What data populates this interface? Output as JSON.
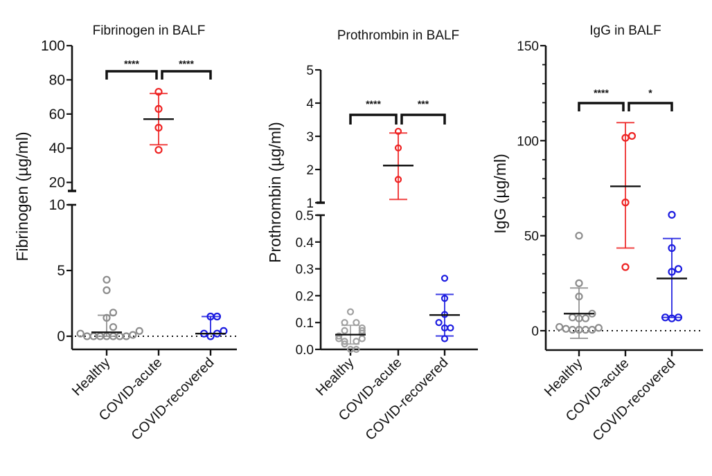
{
  "chart_data": [
    {
      "type": "scatter",
      "title": "Fibrinogen in BALF",
      "ylabel": "Fibrinogen (µg/ml)",
      "xlabel": "",
      "categories": [
        "Healthy",
        "COVID-acute",
        "COVID-recovered"
      ],
      "y_axis_broken": true,
      "y_segments": [
        {
          "range": [
            0,
            10
          ],
          "ticks": [
            0,
            5,
            10
          ],
          "tick_labels": [
            "0",
            "5",
            "10"
          ]
        },
        {
          "range": [
            15,
            100
          ],
          "ticks": [
            20,
            40,
            60,
            80,
            100
          ],
          "tick_labels": [
            "20",
            "40",
            "60",
            "80",
            "100"
          ]
        }
      ],
      "reference_line": {
        "y": 0,
        "style": "dotted"
      },
      "series": [
        {
          "name": "Healthy",
          "color": "#8c8c8c",
          "values": [
            0.0,
            0.0,
            0.0,
            0.0,
            0.0,
            0.0,
            0.0,
            0.1,
            0.2,
            0.4,
            0.7,
            1.4,
            1.8,
            3.5,
            4.3
          ],
          "center": 0.3,
          "error": [
            0.0,
            1.6
          ]
        },
        {
          "name": "COVID-acute",
          "color": "#ee2222",
          "values": [
            39,
            52,
            63,
            73
          ],
          "center": 57,
          "error": [
            42,
            72
          ]
        },
        {
          "name": "COVID-recovered",
          "color": "#1a1ae0",
          "values": [
            0.0,
            0.2,
            0.2,
            0.4,
            1.5,
            1.5
          ],
          "center": 0.2,
          "error": [
            0.2,
            1.5
          ]
        }
      ],
      "significance": [
        {
          "from": "Healthy",
          "to": "COVID-acute",
          "label": "****"
        },
        {
          "from": "COVID-acute",
          "to": "COVID-recovered",
          "label": "****"
        }
      ]
    },
    {
      "type": "scatter",
      "title": "Prothrombin in BALF",
      "ylabel": "Prothrombin (µg/ml)",
      "xlabel": "",
      "categories": [
        "Healthy",
        "COVID-acute",
        "COVID-recovered"
      ],
      "y_axis_broken": true,
      "y_segments": [
        {
          "range": [
            0,
            0.5
          ],
          "ticks": [
            0.0,
            0.1,
            0.2,
            0.3,
            0.4,
            0.5
          ],
          "tick_labels": [
            "0.0",
            "0.1",
            "0.2",
            "0.3",
            "0.4",
            "0.5"
          ]
        },
        {
          "range": [
            1,
            5
          ],
          "ticks": [
            1,
            2,
            3,
            4,
            5
          ],
          "tick_labels": [
            "1",
            "2",
            "3",
            "4",
            "5"
          ]
        }
      ],
      "series": [
        {
          "name": "Healthy",
          "color": "#a0a0a0",
          "values": [
            0.0,
            0.0,
            0.02,
            0.03,
            0.03,
            0.04,
            0.04,
            0.05,
            0.06,
            0.07,
            0.07,
            0.08,
            0.1,
            0.1,
            0.14
          ],
          "center": 0.055,
          "error": [
            0.02,
            0.09
          ]
        },
        {
          "name": "COVID-acute",
          "color": "#ee2222",
          "values": [
            1.7,
            2.65,
            3.15
          ],
          "center": 2.12,
          "error": [
            1.1,
            3.1
          ]
        },
        {
          "name": "COVID-recovered",
          "color": "#1a1ae0",
          "values": [
            0.04,
            0.08,
            0.08,
            0.1,
            0.13,
            0.19,
            0.265
          ],
          "center": 0.128,
          "error": [
            0.05,
            0.205
          ]
        }
      ],
      "significance": [
        {
          "from": "Healthy",
          "to": "COVID-acute",
          "label": "****"
        },
        {
          "from": "COVID-acute",
          "to": "COVID-recovered",
          "label": "***"
        }
      ]
    },
    {
      "type": "scatter",
      "title": "IgG in BALF",
      "ylabel": "IgG (µg/ml)",
      "xlabel": "",
      "categories": [
        "Healthy",
        "COVID-acute",
        "COVID-recovered"
      ],
      "y_axis_broken": false,
      "y_segments": [
        {
          "range": [
            -10,
            150
          ],
          "ticks": [
            0,
            50,
            100,
            150
          ],
          "tick_labels": [
            "0",
            "50",
            "100",
            "150"
          ],
          "minor_step": 10
        }
      ],
      "reference_line": {
        "y": 0,
        "style": "dotted"
      },
      "series": [
        {
          "name": "Healthy",
          "color": "#8c8c8c",
          "values": [
            0.5,
            0.5,
            0.5,
            0.5,
            1,
            1.5,
            2,
            6.5,
            6.5,
            7,
            9,
            18,
            25,
            50
          ],
          "center": 9,
          "error": [
            -4,
            22.5
          ]
        },
        {
          "name": "COVID-acute",
          "color": "#ee2222",
          "values": [
            33.5,
            67.5,
            101.5,
            102.5
          ],
          "center": 76,
          "error": [
            43.5,
            109.5
          ]
        },
        {
          "name": "COVID-recovered",
          "color": "#1a1ae0",
          "values": [
            6.5,
            7,
            7,
            31,
            32.5,
            43.5,
            61
          ],
          "center": 27.5,
          "error": [
            7,
            48.5
          ]
        }
      ],
      "significance": [
        {
          "from": "Healthy",
          "to": "COVID-acute",
          "label": "****"
        },
        {
          "from": "COVID-acute",
          "to": "COVID-recovered",
          "label": "*"
        }
      ]
    }
  ]
}
